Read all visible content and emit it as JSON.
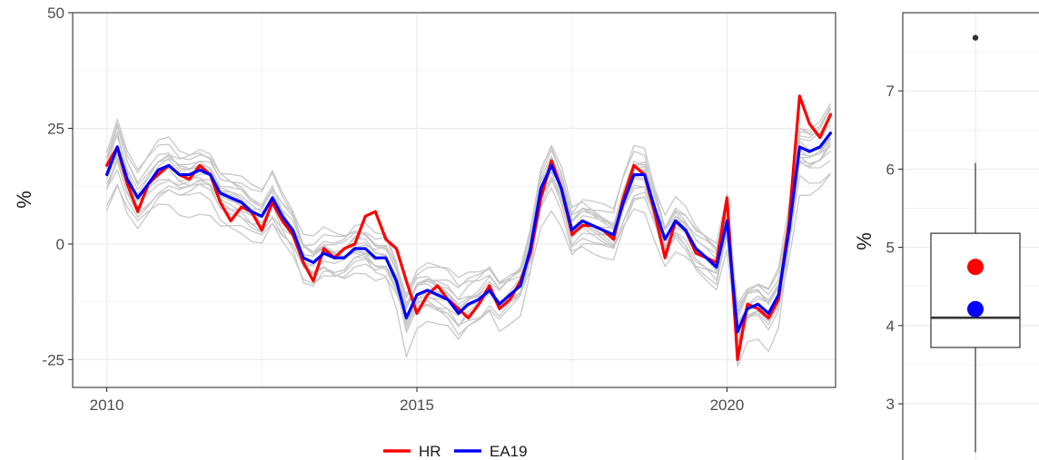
{
  "chart_data": [
    {
      "type": "line",
      "ylabel": "%",
      "ylim": [
        -31,
        50
      ],
      "xlim": [
        2009.45,
        2021.75
      ],
      "grid": true,
      "legend_position": "bottom",
      "x_ticks": [
        {
          "value": 2010,
          "label": "2010"
        },
        {
          "value": 2015,
          "label": "2015"
        },
        {
          "value": 2020,
          "label": "2020"
        }
      ],
      "y_ticks": [
        {
          "value": -25,
          "label": "-25"
        },
        {
          "value": 0,
          "label": "0"
        },
        {
          "value": 25,
          "label": "25"
        },
        {
          "value": 50,
          "label": "50"
        }
      ],
      "x": [
        2010.0,
        2010.17,
        2010.33,
        2010.5,
        2010.67,
        2010.83,
        2011.0,
        2011.17,
        2011.33,
        2011.5,
        2011.67,
        2011.83,
        2012.0,
        2012.17,
        2012.33,
        2012.5,
        2012.67,
        2012.83,
        2013.0,
        2013.17,
        2013.33,
        2013.5,
        2013.67,
        2013.83,
        2014.0,
        2014.17,
        2014.33,
        2014.5,
        2014.67,
        2014.83,
        2015.0,
        2015.17,
        2015.33,
        2015.5,
        2015.67,
        2015.83,
        2016.0,
        2016.17,
        2016.33,
        2016.5,
        2016.67,
        2016.83,
        2017.0,
        2017.17,
        2017.33,
        2017.5,
        2017.67,
        2017.83,
        2018.0,
        2018.17,
        2018.33,
        2018.5,
        2018.67,
        2018.83,
        2019.0,
        2019.17,
        2019.33,
        2019.5,
        2019.67,
        2019.83,
        2020.0,
        2020.17,
        2020.33,
        2020.5,
        2020.67,
        2020.83,
        2021.0,
        2021.17,
        2021.33,
        2021.5,
        2021.67
      ],
      "series": [
        {
          "name": "HR",
          "color": "#ff0000",
          "values": [
            17,
            21,
            13,
            7,
            13,
            15,
            17,
            15,
            14,
            17,
            15,
            9,
            5,
            8,
            7,
            3,
            9,
            5,
            2,
            -4,
            -8,
            -1,
            -3,
            -1,
            0,
            6,
            7,
            1,
            -1,
            -8,
            -15,
            -11,
            -9,
            -12,
            -14,
            -16,
            -13,
            -9,
            -14,
            -12,
            -8,
            -2,
            10,
            18,
            12,
            2,
            4,
            4,
            3,
            1,
            10,
            17,
            15,
            7,
            -3,
            5,
            3,
            -2,
            -3,
            -4,
            10,
            -25,
            -13,
            -14,
            -16,
            -12,
            5,
            32,
            26,
            23,
            28
          ]
        },
        {
          "name": "EA19",
          "color": "#0000ff",
          "values": [
            15,
            21,
            14,
            10,
            13,
            16,
            17,
            15,
            15,
            16,
            15,
            11,
            10,
            9,
            7,
            6,
            10,
            6,
            3,
            -3,
            -4,
            -2,
            -3,
            -3,
            -1,
            -1,
            -3,
            -3,
            -8,
            -16,
            -11,
            -10,
            -11,
            -12,
            -15,
            -13,
            -12,
            -10,
            -13,
            -11,
            -9,
            -1,
            12,
            17,
            12,
            3,
            5,
            4,
            3,
            2,
            9,
            15,
            15,
            8,
            1,
            5,
            3,
            -1,
            -3,
            -5,
            5,
            -19,
            -14,
            -13,
            -15,
            -11,
            3,
            21,
            20,
            21,
            24
          ]
        }
      ]
    },
    {
      "type": "box",
      "ylabel": "%",
      "ylim": [
        2.2,
        8.0
      ],
      "grid": true,
      "y_ticks": [
        {
          "value": 3,
          "label": "3"
        },
        {
          "value": 4,
          "label": "4"
        },
        {
          "value": 5,
          "label": "5"
        },
        {
          "value": 6,
          "label": "6"
        },
        {
          "value": 7,
          "label": "7"
        }
      ],
      "box": {
        "whisker_low": 2.38,
        "q1": 3.72,
        "median": 4.1,
        "q3": 5.18,
        "whisker_high": 6.08,
        "outliers": [
          7.68
        ]
      },
      "points": [
        {
          "series": "HR",
          "value": 4.75,
          "color": "#ff0000"
        },
        {
          "series": "EA19",
          "value": 4.21,
          "color": "#0000ff"
        }
      ]
    }
  ]
}
